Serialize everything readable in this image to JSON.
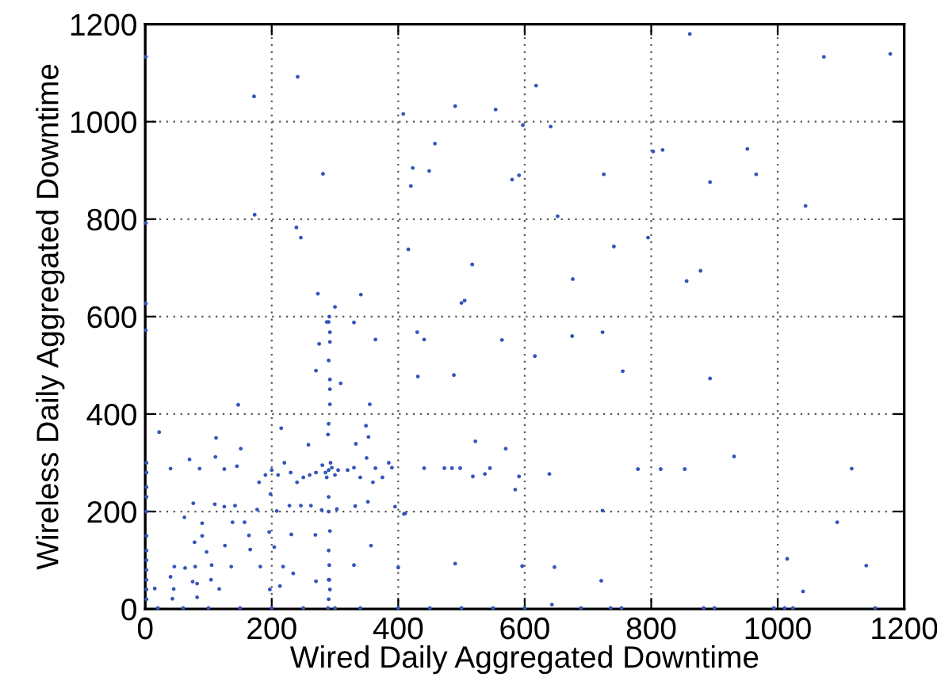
{
  "chart_data": {
    "type": "scatter",
    "xlabel": "Wired Daily Aggregated Downtime",
    "ylabel": "Wireless Daily Aggregated Downtime",
    "xlim": [
      0,
      1200
    ],
    "ylim": [
      0,
      1200
    ],
    "xticks": [
      0,
      200,
      400,
      600,
      800,
      1000,
      1200
    ],
    "yticks": [
      0,
      200,
      400,
      600,
      800,
      1000,
      1200
    ],
    "grid": true,
    "marker": "circle",
    "series": [
      {
        "color": "#3355bb",
        "x": [
          1,
          172,
          241,
          618,
          408,
          490,
          554,
          597,
          458,
          423,
          449,
          420,
          580,
          591,
          281,
          173,
          1,
          239,
          246,
          416,
          517,
          500,
          505,
          273,
          341,
          300,
          1,
          287,
          290,
          330,
          292,
          275,
          292,
          1,
          430,
          441,
          564,
          861,
          1073,
          1178,
          641,
          803,
          818,
          725,
          952,
          966,
          893,
          1044,
          652,
          741,
          795,
          676,
          856,
          878,
          675,
          723,
          616,
          755,
          893,
          639,
          779,
          815,
          853,
          931,
          1117,
          723,
          1094,
          1015,
          1140,
          647,
          721,
          1040,
          643,
          689,
          736,
          753,
          883,
          900,
          994,
          1011,
          1024,
          1154,
          270,
          292,
          309,
          292,
          355,
          147,
          215,
          22,
          112,
          151,
          258,
          289,
          349,
          353,
          333,
          385,
          364,
          40,
          70,
          86,
          111,
          125,
          145,
          290,
          285,
          295,
          300,
          280,
          293,
          287,
          305,
          270,
          260,
          250,
          240,
          230,
          220,
          210,
          200,
          190,
          180,
          320,
          330,
          340,
          350,
          360,
          375,
          390,
          290,
          290,
          292,
          290,
          291,
          290,
          292,
          290,
          289,
          291,
          290,
          292,
          290,
          76,
          110,
          125,
          142,
          177,
          198,
          208,
          228,
          246,
          262,
          279,
          303,
          332,
          352,
          395,
          409,
          62,
          90,
          138,
          157,
          196,
          231,
          269,
          90,
          78,
          126,
          164,
          166,
          204,
          357,
          97,
          46,
          63,
          79,
          105,
          136,
          182,
          218,
          234,
          330,
          400,
          40,
          75,
          104,
          82,
          45,
          15,
          117,
          197,
          43,
          82,
          213,
          270,
          291,
          441,
          473,
          485,
          498,
          518,
          537,
          545,
          585,
          591,
          570,
          522,
          488,
          431,
          364,
          411,
          490,
          596,
          2,
          2,
          2,
          2,
          2,
          2,
          2,
          2,
          2,
          2,
          2,
          2,
          20,
          60,
          100,
          150,
          200,
          250,
          300,
          340,
          400,
          450,
          500,
          550,
          600
        ],
        "values": [
          1133,
          1052,
          1092,
          1074,
          1016,
          1032,
          1025,
          993,
          955,
          905,
          899,
          868,
          881,
          890,
          893,
          809,
          792,
          783,
          762,
          738,
          707,
          628,
          633,
          647,
          645,
          620,
          627,
          589,
          589,
          588,
          568,
          544,
          548,
          572,
          568,
          553,
          552,
          1180,
          1133,
          1139,
          990,
          939,
          942,
          892,
          944,
          892,
          876,
          827,
          806,
          744,
          762,
          677,
          673,
          694,
          560,
          568,
          519,
          488,
          473,
          277,
          287,
          287,
          287,
          313,
          288,
          202,
          178,
          103,
          89,
          86,
          58,
          36,
          9,
          2,
          2,
          2,
          2,
          2,
          2,
          2,
          2,
          2,
          489,
          471,
          463,
          451,
          420,
          419,
          371,
          363,
          351,
          329,
          337,
          358,
          376,
          353,
          339,
          300,
          289,
          288,
          307,
          288,
          312,
          287,
          293,
          285,
          280,
          290,
          275,
          295,
          300,
          270,
          285,
          280,
          275,
          270,
          260,
          280,
          300,
          275,
          285,
          275,
          260,
          285,
          290,
          270,
          310,
          260,
          270,
          290,
          230,
          200,
          160,
          120,
          90,
          60,
          40,
          20,
          2,
          600,
          510,
          420,
          380,
          217,
          215,
          210,
          212,
          204,
          236,
          201,
          212,
          212,
          212,
          203,
          205,
          211,
          220,
          210,
          195,
          188,
          176,
          178,
          178,
          158,
          153,
          152,
          150,
          137,
          130,
          151,
          122,
          127,
          130,
          117,
          87,
          84,
          87,
          90,
          87,
          87,
          87,
          73,
          90,
          85,
          66,
          56,
          60,
          52,
          41,
          42,
          41,
          40,
          21,
          24,
          47,
          57,
          60,
          289,
          289,
          289,
          289,
          272,
          277,
          289,
          245,
          272,
          329,
          344,
          480,
          477,
          553,
          196,
          93,
          88,
          300,
          280,
          250,
          230,
          200,
          150,
          120,
          100,
          80,
          60,
          40,
          20,
          2,
          2,
          2,
          2,
          2,
          2,
          2,
          2,
          2,
          2,
          2,
          2,
          2
        ]
      }
    ]
  }
}
